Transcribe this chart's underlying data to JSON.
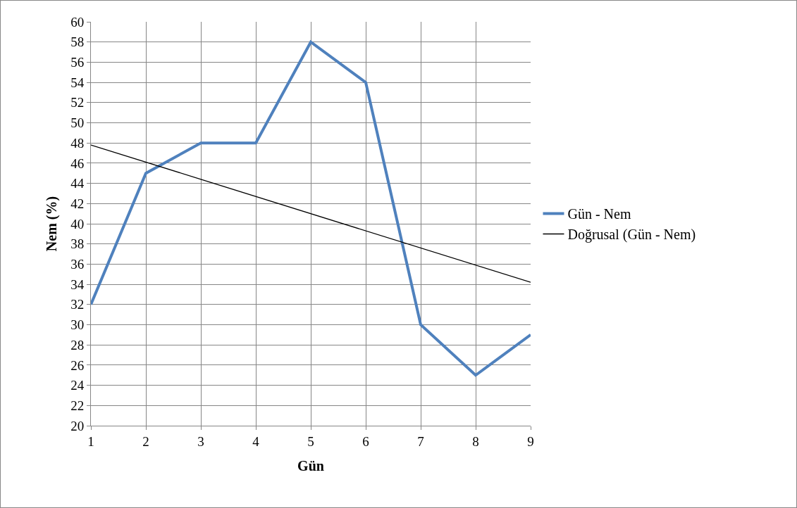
{
  "chart_data": {
    "type": "line",
    "xlabel": "Gün",
    "ylabel": "Nem (%)",
    "x": [
      1,
      2,
      3,
      4,
      5,
      6,
      7,
      8,
      9
    ],
    "series": [
      {
        "name": "Gün - Nem",
        "color": "#4f81bd",
        "values": [
          32,
          45,
          48,
          48,
          58,
          54,
          30,
          25,
          29
        ]
      },
      {
        "name": "Doğrusal (Gün - Nem)",
        "color": "#000000",
        "type": "line",
        "x": [
          1,
          9
        ],
        "values": [
          47.8,
          34.2
        ]
      }
    ],
    "xlim": [
      1,
      9
    ],
    "xticks": [
      1,
      2,
      3,
      4,
      5,
      6,
      7,
      8,
      9
    ],
    "ylim": [
      20,
      60
    ],
    "yticks": [
      20,
      22,
      24,
      26,
      28,
      30,
      32,
      34,
      36,
      38,
      40,
      42,
      44,
      46,
      48,
      50,
      52,
      54,
      56,
      58,
      60
    ],
    "grid": true,
    "legend": "right",
    "marker": "none",
    "line_style": "solid"
  }
}
